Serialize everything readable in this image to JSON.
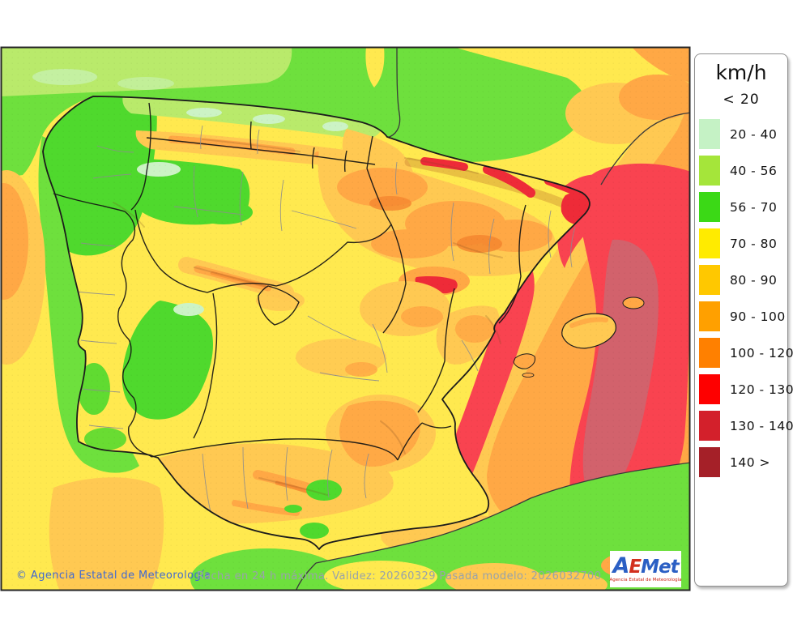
{
  "page": {
    "background_color": "#ffffff"
  },
  "legend": {
    "title": "km/h",
    "first_row_label": "< 20",
    "rows": [
      {
        "label": "20 - 40",
        "color": "#c5f2c5"
      },
      {
        "label": "40 - 56",
        "color": "#a5e53a"
      },
      {
        "label": "56 - 70",
        "color": "#3bd916"
      },
      {
        "label": "70 - 80",
        "color": "#ffeb00"
      },
      {
        "label": "80 - 90",
        "color": "#ffc800"
      },
      {
        "label": "90 - 100",
        "color": "#ffa000"
      },
      {
        "label": "100 - 120",
        "color": "#ff8000"
      },
      {
        "label": "120 - 130",
        "color": "#fe0000"
      },
      {
        "label": "130 - 140",
        "color": "#d3202b"
      },
      {
        "label": "140 >",
        "color": "#a52028"
      }
    ]
  },
  "footer": {
    "copyright": "© Agencia Estatal de Meteorología",
    "model_info": "Racha en 24 h máxima. Validez: 20260329 Pasada modelo: 2026032700"
  },
  "logo": {
    "letters": [
      {
        "ch": "A",
        "color": "#2b5fc4"
      },
      {
        "ch": "E",
        "color": "#d2301f"
      },
      {
        "ch": "M",
        "color": "#2b5fc4"
      },
      {
        "ch": "e",
        "color": "#2b5fc4"
      },
      {
        "ch": "t",
        "color": "#2b5fc4"
      }
    ],
    "subtitle": "Agencia Estatal de Meteorología"
  },
  "map": {
    "colors": {
      "yellow": "#ffe94f",
      "gold": "#ffc952",
      "orange": "#ffa845",
      "deep_orange": "#f5862f",
      "sea_green": "#6ee03d",
      "light_green": "#b9ea6b",
      "mint": "#ccf3c5",
      "land_green": "#4fd92d",
      "red": "#ee2b38",
      "sea_red": "#f94350",
      "dark_red": "#d2626c"
    }
  }
}
